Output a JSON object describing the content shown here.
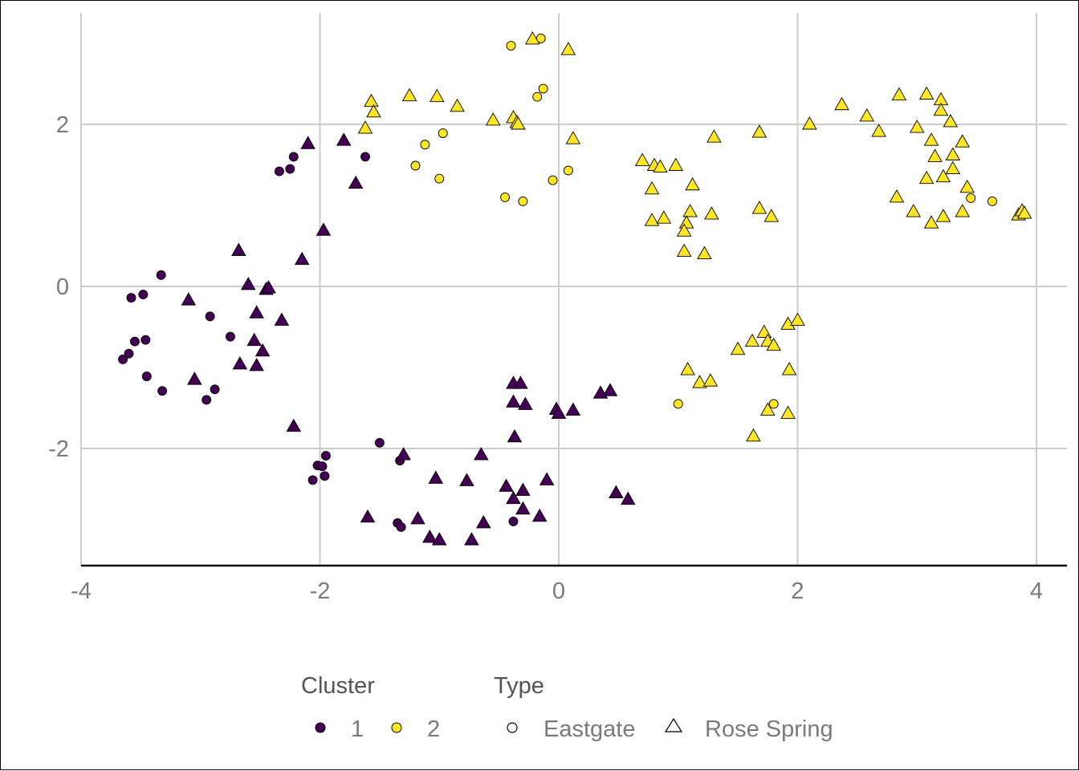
{
  "chart_data": {
    "type": "scatter",
    "title": "",
    "xlabel": "",
    "ylabel": "",
    "xlim": [
      -4,
      4
    ],
    "ylim": [
      -3.45,
      3.4
    ],
    "x_ticks": [
      "-4",
      "-2",
      "0",
      "2",
      "4"
    ],
    "y_ticks": [
      "-2",
      "0",
      "2"
    ],
    "grid": true,
    "legend_position": "bottom",
    "colors": {
      "1": "#440154",
      "2": "#fde725",
      "outline": "#000000",
      "grid": "#cccccc"
    },
    "legend": {
      "cluster": {
        "title": "Cluster",
        "items": [
          "1",
          "2"
        ]
      },
      "type": {
        "title": "Type",
        "items": [
          "Eastgate",
          "Rose Spring"
        ]
      }
    },
    "series": [
      {
        "cluster": "1",
        "type": "Eastgate",
        "points": [
          [
            -3.65,
            -0.9
          ],
          [
            -3.6,
            -0.83
          ],
          [
            -3.58,
            -0.14
          ],
          [
            -3.55,
            -0.68
          ],
          [
            -3.48,
            -0.1
          ],
          [
            -3.46,
            -0.66
          ],
          [
            -3.45,
            -1.11
          ],
          [
            -3.33,
            0.14
          ],
          [
            -3.32,
            -1.29
          ],
          [
            -2.95,
            -1.4
          ],
          [
            -2.92,
            -0.37
          ],
          [
            -2.88,
            -1.27
          ],
          [
            -2.75,
            -0.62
          ],
          [
            -2.34,
            1.42
          ],
          [
            -2.25,
            1.45
          ],
          [
            -2.22,
            1.6
          ],
          [
            -1.62,
            1.6
          ],
          [
            -2.06,
            -2.39
          ],
          [
            -2.02,
            -2.21
          ],
          [
            -1.98,
            -2.22
          ],
          [
            -1.96,
            -2.34
          ],
          [
            -1.95,
            -2.09
          ],
          [
            -1.5,
            -1.93
          ],
          [
            -1.33,
            -2.15
          ],
          [
            -1.35,
            -2.92
          ],
          [
            -1.32,
            -2.97
          ],
          [
            -0.38,
            -2.9
          ]
        ]
      },
      {
        "cluster": "1",
        "type": "Rose Spring",
        "points": [
          [
            -2.1,
            1.76
          ],
          [
            -1.8,
            1.8
          ],
          [
            -1.7,
            1.27
          ],
          [
            -1.97,
            0.69
          ],
          [
            -2.15,
            0.33
          ],
          [
            -2.68,
            0.44
          ],
          [
            -3.1,
            -0.17
          ],
          [
            -2.6,
            0.02
          ],
          [
            -2.45,
            -0.04
          ],
          [
            -2.43,
            -0.02
          ],
          [
            -2.53,
            -0.33
          ],
          [
            -2.32,
            -0.42
          ],
          [
            -2.55,
            -0.67
          ],
          [
            -2.48,
            -0.8
          ],
          [
            -2.67,
            -0.96
          ],
          [
            -2.53,
            -0.98
          ],
          [
            -3.05,
            -1.15
          ],
          [
            -2.22,
            -1.73
          ],
          [
            -1.6,
            -2.85
          ],
          [
            -1.3,
            -2.08
          ],
          [
            -1.18,
            -2.87
          ],
          [
            -1.08,
            -3.1
          ],
          [
            -1.0,
            -3.13
          ],
          [
            -1.03,
            -2.37
          ],
          [
            -0.77,
            -2.4
          ],
          [
            -0.73,
            -3.13
          ],
          [
            -0.65,
            -2.08
          ],
          [
            -0.63,
            -2.92
          ],
          [
            -0.44,
            -2.47
          ],
          [
            -0.38,
            -1.43
          ],
          [
            -0.38,
            -1.2
          ],
          [
            -0.32,
            -1.2
          ],
          [
            -0.28,
            -1.46
          ],
          [
            -0.37,
            -1.86
          ],
          [
            -0.38,
            -2.62
          ],
          [
            -0.3,
            -2.52
          ],
          [
            -0.3,
            -2.75
          ],
          [
            -0.16,
            -2.84
          ],
          [
            -0.1,
            -2.39
          ],
          [
            -0.02,
            -1.52
          ],
          [
            0.0,
            -1.57
          ],
          [
            0.12,
            -1.53
          ],
          [
            0.35,
            -1.32
          ],
          [
            0.43,
            -1.29
          ],
          [
            0.48,
            -2.55
          ],
          [
            0.58,
            -2.63
          ]
        ]
      },
      {
        "cluster": "2",
        "type": "Eastgate",
        "points": [
          [
            -0.4,
            2.97
          ],
          [
            -0.15,
            3.06
          ],
          [
            -0.18,
            2.34
          ],
          [
            -0.13,
            2.44
          ],
          [
            -1.0,
            1.33
          ],
          [
            -1.12,
            1.75
          ],
          [
            -1.2,
            1.49
          ],
          [
            -0.97,
            1.89
          ],
          [
            -0.45,
            1.1
          ],
          [
            -0.3,
            1.05
          ],
          [
            -0.05,
            1.31
          ],
          [
            0.08,
            1.43
          ],
          [
            1.0,
            -1.45
          ],
          [
            1.8,
            -1.45
          ],
          [
            3.45,
            1.09
          ],
          [
            3.63,
            1.05
          ]
        ]
      },
      {
        "cluster": "2",
        "type": "Rose Spring",
        "points": [
          [
            -0.22,
            3.05
          ],
          [
            0.08,
            2.92
          ],
          [
            0.12,
            1.82
          ],
          [
            -1.57,
            2.28
          ],
          [
            -1.55,
            2.15
          ],
          [
            -1.62,
            1.95
          ],
          [
            -1.25,
            2.35
          ],
          [
            -1.02,
            2.34
          ],
          [
            -0.85,
            2.22
          ],
          [
            -0.55,
            2.05
          ],
          [
            -0.38,
            2.08
          ],
          [
            -0.35,
            2.02
          ],
          [
            -0.34,
            2.0
          ],
          [
            0.7,
            1.55
          ],
          [
            0.8,
            1.49
          ],
          [
            0.85,
            1.47
          ],
          [
            0.98,
            1.49
          ],
          [
            0.78,
            1.2
          ],
          [
            1.12,
            1.25
          ],
          [
            0.78,
            0.81
          ],
          [
            0.88,
            0.84
          ],
          [
            1.1,
            0.92
          ],
          [
            1.07,
            0.78
          ],
          [
            1.05,
            0.68
          ],
          [
            1.05,
            0.43
          ],
          [
            1.22,
            0.4
          ],
          [
            1.28,
            0.89
          ],
          [
            1.3,
            1.84
          ],
          [
            1.68,
            1.9
          ],
          [
            1.68,
            0.96
          ],
          [
            1.78,
            0.86
          ],
          [
            2.1,
            2.0
          ],
          [
            2.37,
            2.24
          ],
          [
            2.58,
            2.1
          ],
          [
            2.68,
            1.91
          ],
          [
            2.85,
            2.36
          ],
          [
            3.08,
            2.37
          ],
          [
            3.0,
            1.96
          ],
          [
            3.2,
            2.3
          ],
          [
            3.2,
            2.17
          ],
          [
            3.28,
            2.03
          ],
          [
            3.12,
            1.8
          ],
          [
            3.15,
            1.6
          ],
          [
            3.38,
            1.78
          ],
          [
            3.3,
            1.62
          ],
          [
            3.22,
            1.35
          ],
          [
            3.08,
            1.33
          ],
          [
            3.3,
            1.45
          ],
          [
            3.42,
            1.22
          ],
          [
            2.83,
            1.1
          ],
          [
            2.97,
            0.92
          ],
          [
            3.12,
            0.78
          ],
          [
            3.22,
            0.86
          ],
          [
            3.38,
            0.92
          ],
          [
            3.85,
            0.88
          ],
          [
            3.88,
            0.93
          ],
          [
            3.9,
            0.9
          ],
          [
            1.5,
            -0.78
          ],
          [
            1.62,
            -0.68
          ],
          [
            1.72,
            -0.57
          ],
          [
            1.75,
            -0.68
          ],
          [
            1.8,
            -0.73
          ],
          [
            1.92,
            -0.47
          ],
          [
            2.0,
            -0.42
          ],
          [
            1.93,
            -1.03
          ],
          [
            1.08,
            -1.03
          ],
          [
            1.18,
            -1.19
          ],
          [
            1.27,
            -1.17
          ],
          [
            1.75,
            -1.53
          ],
          [
            1.92,
            -1.57
          ],
          [
            1.63,
            -1.85
          ]
        ]
      }
    ]
  }
}
